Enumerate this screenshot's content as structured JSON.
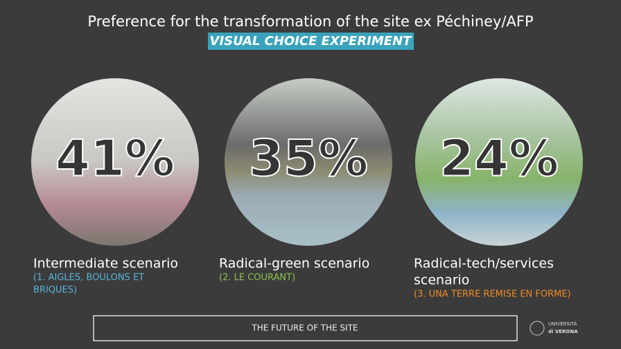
{
  "header": {
    "title": "Preference for the transformation of the site ex Péchiney/AFP",
    "subtitle": "VISUAL CHOICE EXPERIMENT"
  },
  "scenarios": [
    {
      "percent": "41%",
      "name": "Intermediate scenario",
      "detail": [
        "(1. AIGLES, BOULONS ET",
        "BRIQUES)"
      ],
      "color": "#5ab4d8"
    },
    {
      "percent": "35%",
      "name": "Radical-green scenario",
      "detail": [
        "(2. LE COURANT)"
      ],
      "color": "#8dc24c"
    },
    {
      "percent": "24%",
      "name": [
        "Radical-tech/services",
        "scenario"
      ],
      "detail": [
        "(3. UNA TERRE REMISE EN FORME)"
      ],
      "color": "#f08a24"
    }
  ],
  "footer": {
    "label": "THE FUTURE OF THE SITE",
    "logo": [
      "UNIVERSITÀ",
      "di VERONA"
    ]
  }
}
